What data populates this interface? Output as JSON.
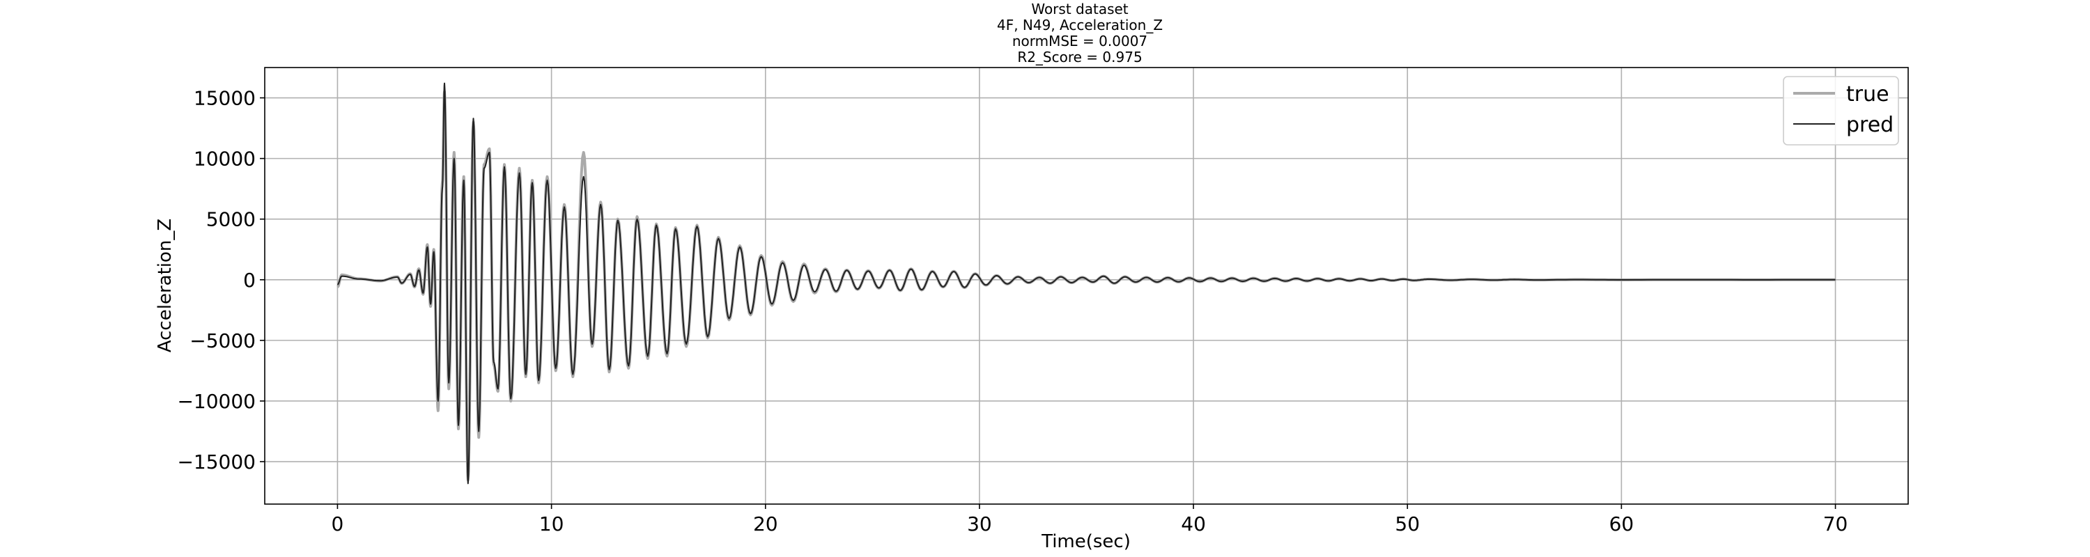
{
  "chart_data": {
    "type": "line",
    "title_lines": [
      "Worst dataset",
      "4F, N49, Acceleration_Z",
      "normMSE = 0.0007",
      "R2_Score = 0.975"
    ],
    "xlabel": "Time(sec)",
    "ylabel": "Acceleration_Z",
    "xlim": [
      -3.4,
      73.4
    ],
    "ylim": [
      -18500,
      17500
    ],
    "x_ticks": [
      0,
      10,
      20,
      30,
      40,
      50,
      60,
      70
    ],
    "y_ticks": [
      15000,
      10000,
      5000,
      0,
      -5000,
      -10000,
      -15000
    ],
    "x_tick_labels": [
      "0",
      "10",
      "20",
      "30",
      "40",
      "50",
      "60",
      "70"
    ],
    "y_tick_labels": [
      "15000",
      "10000",
      "5000",
      "0",
      "−5000",
      "−10000",
      "−15000"
    ],
    "grid": true,
    "legend_position": "top-right",
    "signal_duration_sec": 70,
    "series": [
      {
        "name": "true",
        "color": "#aaaaaa",
        "peaks": [
          [
            0.0,
            -600
          ],
          [
            0.2,
            400
          ],
          [
            1.0,
            80
          ],
          [
            2.0,
            -100
          ],
          [
            2.8,
            250
          ],
          [
            3.0,
            -300
          ],
          [
            3.4,
            500
          ],
          [
            3.6,
            -600
          ],
          [
            3.8,
            900
          ],
          [
            4.0,
            -1200
          ],
          [
            4.2,
            2900
          ],
          [
            4.35,
            -2200
          ],
          [
            4.5,
            2500
          ],
          [
            4.7,
            -10800
          ],
          [
            4.9,
            8000
          ],
          [
            5.0,
            15500
          ],
          [
            5.2,
            -9000
          ],
          [
            5.45,
            10500
          ],
          [
            5.65,
            -12300
          ],
          [
            5.9,
            8500
          ],
          [
            6.1,
            -16500
          ],
          [
            6.35,
            13000
          ],
          [
            6.6,
            -13000
          ],
          [
            6.85,
            9500
          ],
          [
            7.1,
            10800
          ],
          [
            7.3,
            -7000
          ],
          [
            7.5,
            -9200
          ],
          [
            7.8,
            9500
          ],
          [
            8.1,
            -10000
          ],
          [
            8.5,
            9200
          ],
          [
            8.8,
            -8000
          ],
          [
            9.1,
            8200
          ],
          [
            9.4,
            -8500
          ],
          [
            9.8,
            8500
          ],
          [
            10.2,
            -7500
          ],
          [
            10.6,
            6200
          ],
          [
            11.0,
            -8000
          ],
          [
            11.5,
            10500
          ],
          [
            11.9,
            -5500
          ],
          [
            12.3,
            6400
          ],
          [
            12.7,
            -7600
          ],
          [
            13.1,
            5000
          ],
          [
            13.6,
            -7300
          ],
          [
            14.0,
            5200
          ],
          [
            14.5,
            -6500
          ],
          [
            14.9,
            4600
          ],
          [
            15.4,
            -6300
          ],
          [
            15.8,
            4300
          ],
          [
            16.3,
            -5500
          ],
          [
            16.8,
            4500
          ],
          [
            17.3,
            -4800
          ],
          [
            17.8,
            3500
          ],
          [
            18.3,
            -3300
          ],
          [
            18.8,
            2800
          ],
          [
            19.3,
            -2900
          ],
          [
            19.8,
            2000
          ],
          [
            20.3,
            -2100
          ],
          [
            20.8,
            1500
          ],
          [
            21.3,
            -1800
          ],
          [
            21.8,
            1300
          ],
          [
            22.3,
            -1100
          ],
          [
            22.8,
            900
          ],
          [
            23.3,
            -1000
          ],
          [
            23.8,
            800
          ],
          [
            24.3,
            -800
          ],
          [
            24.8,
            750
          ],
          [
            25.3,
            -700
          ],
          [
            25.8,
            800
          ],
          [
            26.3,
            -900
          ],
          [
            26.8,
            900
          ],
          [
            27.3,
            -850
          ],
          [
            27.8,
            700
          ],
          [
            28.3,
            -600
          ],
          [
            28.8,
            700
          ],
          [
            29.3,
            -650
          ],
          [
            29.8,
            500
          ],
          [
            30.3,
            -450
          ],
          [
            30.8,
            350
          ],
          [
            31.3,
            -350
          ],
          [
            31.8,
            250
          ],
          [
            32.3,
            -250
          ],
          [
            32.8,
            200
          ],
          [
            33.3,
            -300
          ],
          [
            33.8,
            250
          ],
          [
            34.3,
            -250
          ],
          [
            34.8,
            200
          ],
          [
            35.3,
            -200
          ],
          [
            35.8,
            300
          ],
          [
            36.3,
            -300
          ],
          [
            36.8,
            250
          ],
          [
            37.3,
            -200
          ],
          [
            37.8,
            200
          ],
          [
            38.3,
            -200
          ],
          [
            38.8,
            180
          ],
          [
            39.3,
            -180
          ],
          [
            39.8,
            160
          ],
          [
            40.3,
            -160
          ],
          [
            40.8,
            150
          ],
          [
            41.3,
            -150
          ],
          [
            41.8,
            140
          ],
          [
            42.3,
            -140
          ],
          [
            42.8,
            130
          ],
          [
            43.3,
            -130
          ],
          [
            43.8,
            120
          ],
          [
            44.3,
            -120
          ],
          [
            44.8,
            110
          ],
          [
            45.3,
            -110
          ],
          [
            45.8,
            100
          ],
          [
            46.3,
            -100
          ],
          [
            46.8,
            90
          ],
          [
            47.3,
            -90
          ],
          [
            47.8,
            80
          ],
          [
            48.3,
            -80
          ],
          [
            48.8,
            70
          ],
          [
            49.3,
            -70
          ],
          [
            49.8,
            60
          ],
          [
            50.3,
            -60
          ],
          [
            51.0,
            50
          ],
          [
            52.0,
            -40
          ],
          [
            53.0,
            35
          ],
          [
            54.0,
            -30
          ],
          [
            55.0,
            25
          ],
          [
            56.0,
            -20
          ],
          [
            58.0,
            15
          ],
          [
            60.0,
            -10
          ],
          [
            63.0,
            8
          ],
          [
            66.0,
            -5
          ],
          [
            70.0,
            0
          ]
        ]
      },
      {
        "name": "pred",
        "color": "#222222",
        "peaks": [
          [
            0.0,
            -400
          ],
          [
            0.2,
            300
          ],
          [
            1.0,
            60
          ],
          [
            2.0,
            -80
          ],
          [
            2.8,
            220
          ],
          [
            3.0,
            -280
          ],
          [
            3.4,
            450
          ],
          [
            3.6,
            -550
          ],
          [
            3.8,
            800
          ],
          [
            4.0,
            -1100
          ],
          [
            4.2,
            2700
          ],
          [
            4.35,
            -2000
          ],
          [
            4.5,
            2300
          ],
          [
            4.7,
            -10000
          ],
          [
            4.9,
            7500
          ],
          [
            5.0,
            16200
          ],
          [
            5.2,
            -8500
          ],
          [
            5.45,
            10000
          ],
          [
            5.65,
            -12000
          ],
          [
            5.9,
            8200
          ],
          [
            6.1,
            -16800
          ],
          [
            6.35,
            13300
          ],
          [
            6.6,
            -12500
          ],
          [
            6.85,
            9200
          ],
          [
            7.1,
            10500
          ],
          [
            7.3,
            -6800
          ],
          [
            7.5,
            -9000
          ],
          [
            7.8,
            9300
          ],
          [
            8.1,
            -9800
          ],
          [
            8.5,
            8800
          ],
          [
            8.8,
            -7800
          ],
          [
            9.1,
            8000
          ],
          [
            9.4,
            -8300
          ],
          [
            9.8,
            8200
          ],
          [
            10.2,
            -7300
          ],
          [
            10.6,
            6000
          ],
          [
            11.0,
            -7800
          ],
          [
            11.5,
            8500
          ],
          [
            11.9,
            -5300
          ],
          [
            12.3,
            6200
          ],
          [
            12.7,
            -7400
          ],
          [
            13.1,
            4900
          ],
          [
            13.6,
            -7100
          ],
          [
            14.0,
            5000
          ],
          [
            14.5,
            -6300
          ],
          [
            14.9,
            4500
          ],
          [
            15.4,
            -6100
          ],
          [
            15.8,
            4200
          ],
          [
            16.3,
            -5300
          ],
          [
            16.8,
            4400
          ],
          [
            17.3,
            -4700
          ],
          [
            17.8,
            3400
          ],
          [
            18.3,
            -3200
          ],
          [
            18.8,
            2700
          ],
          [
            19.3,
            -2800
          ],
          [
            19.8,
            1900
          ],
          [
            20.3,
            -2000
          ],
          [
            20.8,
            1400
          ],
          [
            21.3,
            -1700
          ],
          [
            21.8,
            1200
          ],
          [
            22.3,
            -1000
          ],
          [
            22.8,
            850
          ],
          [
            23.3,
            -950
          ],
          [
            23.8,
            780
          ],
          [
            24.3,
            -780
          ],
          [
            24.8,
            720
          ],
          [
            25.3,
            -680
          ],
          [
            25.8,
            780
          ],
          [
            26.3,
            -880
          ],
          [
            26.8,
            880
          ],
          [
            27.3,
            -830
          ],
          [
            27.8,
            680
          ],
          [
            28.3,
            -580
          ],
          [
            28.8,
            680
          ],
          [
            29.3,
            -630
          ],
          [
            29.8,
            480
          ],
          [
            30.3,
            -430
          ],
          [
            30.8,
            340
          ],
          [
            31.3,
            -340
          ],
          [
            31.8,
            240
          ],
          [
            32.3,
            -240
          ],
          [
            32.8,
            190
          ],
          [
            33.3,
            -290
          ],
          [
            33.8,
            240
          ],
          [
            34.3,
            -240
          ],
          [
            34.8,
            190
          ],
          [
            35.3,
            -190
          ],
          [
            35.8,
            290
          ],
          [
            36.3,
            -290
          ],
          [
            36.8,
            240
          ],
          [
            37.3,
            -190
          ],
          [
            37.8,
            190
          ],
          [
            38.3,
            -190
          ],
          [
            38.8,
            170
          ],
          [
            39.3,
            -170
          ],
          [
            39.8,
            150
          ],
          [
            40.3,
            -150
          ],
          [
            40.8,
            140
          ],
          [
            41.3,
            -140
          ],
          [
            41.8,
            130
          ],
          [
            42.3,
            -130
          ],
          [
            42.8,
            120
          ],
          [
            43.3,
            -120
          ],
          [
            43.8,
            110
          ],
          [
            44.3,
            -110
          ],
          [
            44.8,
            100
          ],
          [
            45.3,
            -100
          ],
          [
            45.8,
            90
          ],
          [
            46.3,
            -90
          ],
          [
            46.8,
            80
          ],
          [
            47.3,
            -80
          ],
          [
            47.8,
            70
          ],
          [
            48.3,
            -70
          ],
          [
            48.8,
            60
          ],
          [
            49.3,
            -60
          ],
          [
            49.8,
            50
          ],
          [
            50.3,
            -50
          ],
          [
            51.0,
            45
          ],
          [
            52.0,
            -35
          ],
          [
            53.0,
            30
          ],
          [
            54.0,
            -25
          ],
          [
            55.0,
            20
          ],
          [
            56.0,
            -18
          ],
          [
            58.0,
            12
          ],
          [
            60.0,
            -8
          ],
          [
            63.0,
            6
          ],
          [
            66.0,
            -4
          ],
          [
            70.0,
            0
          ]
        ]
      }
    ]
  }
}
